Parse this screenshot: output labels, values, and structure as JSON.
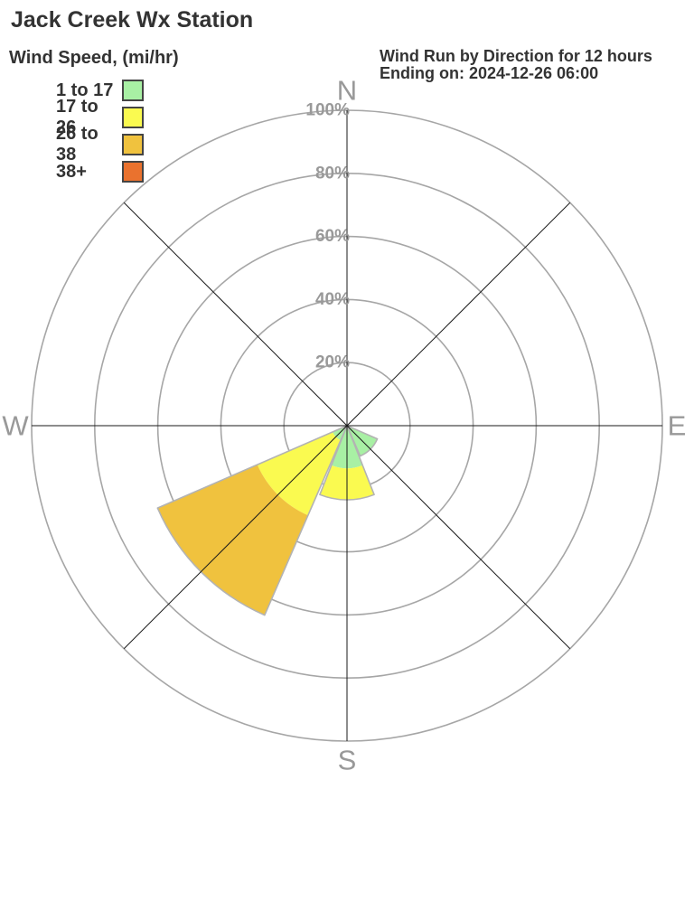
{
  "header": {
    "title": "Jack Creek Wx Station",
    "right_line1": "Wind Run by Direction for 12 hours",
    "right_line2": "Ending on: 2024-12-26 06:00"
  },
  "legend": {
    "title": "Wind Speed, (mi/hr)",
    "items": [
      {
        "label": "1 to 17",
        "color": "#a8f0a4"
      },
      {
        "label": "17 to 26",
        "color": "#fafa50"
      },
      {
        "label": "26 to 38",
        "color": "#f0c23e"
      },
      {
        "label": "38+",
        "color": "#ea722e"
      }
    ]
  },
  "chart_data": {
    "type": "wind_rose_polar_bar",
    "title": "Wind Run by Direction for 12 hours",
    "subtitle": "Ending on: 2024-12-26 06:00",
    "station": "Jack Creek Wx Station",
    "units": "percent of wind run",
    "radial_axis": {
      "ticks_percent": [
        20,
        40,
        60,
        80,
        100
      ],
      "max_percent": 100,
      "tick_suffix": "%"
    },
    "compass_labels": [
      "N",
      "E",
      "S",
      "W"
    ],
    "speed_bins": [
      {
        "label": "1 to 17",
        "color": "#a8f0a4"
      },
      {
        "label": "17 to 26",
        "color": "#fafa50"
      },
      {
        "label": "26 to 38",
        "color": "#f0c23e"
      },
      {
        "label": "38+",
        "color": "#ea722e"
      }
    ],
    "sectors": [
      {
        "direction": "N",
        "compass_deg": 0,
        "segments_percent": [
          0,
          0,
          0,
          0
        ]
      },
      {
        "direction": "NE",
        "compass_deg": 45,
        "segments_percent": [
          0,
          0,
          0,
          0
        ]
      },
      {
        "direction": "E",
        "compass_deg": 90,
        "segments_percent": [
          0,
          0,
          0,
          0
        ]
      },
      {
        "direction": "SE",
        "compass_deg": 135,
        "segments_percent": [
          10.5,
          0,
          0,
          0
        ]
      },
      {
        "direction": "S",
        "compass_deg": 180,
        "segments_percent": [
          13.5,
          10,
          0,
          0
        ]
      },
      {
        "direction": "SW",
        "compass_deg": 225,
        "segments_percent": [
          5,
          26,
          34.5,
          0
        ]
      },
      {
        "direction": "W",
        "compass_deg": 270,
        "segments_percent": [
          0,
          0,
          0,
          0
        ]
      },
      {
        "direction": "NW",
        "compass_deg": 315,
        "segments_percent": [
          0,
          0,
          0,
          0
        ]
      }
    ],
    "style": {
      "ring_color": "#a6a6a6",
      "spoke_color": "#1a1a1a",
      "gray_label_color": "#999999",
      "petal_border_color": "#b3b3b3",
      "petal_half_width_deg": 21.5
    }
  }
}
